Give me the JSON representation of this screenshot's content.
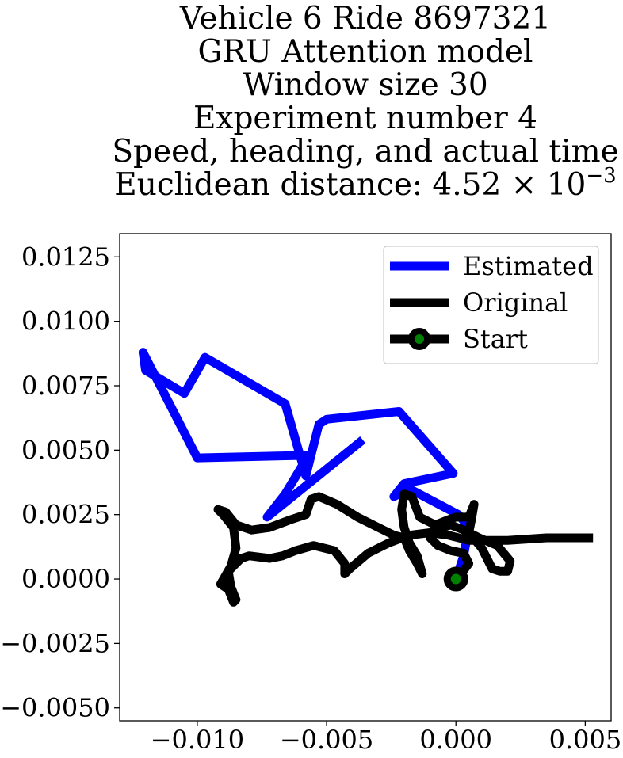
{
  "chart_data": {
    "type": "line",
    "title_lines": [
      "Vehicle 6 Ride 8697321",
      "GRU Attention model",
      "Window size 30",
      "Experiment number 4",
      "Speed, heading, and actual time"
    ],
    "title_distance_prefix": "Euclidean distance: 4.52 × 10",
    "title_distance_exponent": "−3",
    "xlim": [
      -0.013,
      0.006
    ],
    "ylim": [
      -0.0055,
      0.0134
    ],
    "x_ticks": [
      -0.01,
      -0.005,
      0.0,
      0.005
    ],
    "x_tick_labels": [
      "−0.010",
      "−0.005",
      "0.000",
      "0.005"
    ],
    "y_ticks": [
      0.0125,
      0.01,
      0.0075,
      0.005,
      0.0025,
      0.0,
      -0.0025,
      -0.005
    ],
    "y_tick_labels": [
      "0.0125",
      "0.0100",
      "0.0075",
      "0.0050",
      "0.0025",
      "0.0000",
      "−0.0025",
      "−0.0050"
    ],
    "grid": false,
    "legend_position": "top-right",
    "series": [
      {
        "name": "Estimated",
        "color": "#0000ff",
        "points": [
          [
            0.0,
            0.0
          ],
          [
            0.0003,
            0.0009
          ],
          [
            0.0005,
            0.002
          ],
          [
            0.0001,
            0.0025
          ],
          [
            -0.0018,
            0.0035
          ],
          [
            -0.0024,
            0.0032
          ],
          [
            -0.002,
            0.0037
          ],
          [
            -0.0001,
            0.0041
          ],
          [
            -0.0022,
            0.0065
          ],
          [
            -0.005,
            0.0062
          ],
          [
            -0.0053,
            0.006
          ],
          [
            -0.0058,
            0.004
          ],
          [
            -0.006,
            0.0047
          ],
          [
            -0.0066,
            0.0068
          ],
          [
            -0.0097,
            0.0086
          ],
          [
            -0.0105,
            0.0072
          ],
          [
            -0.012,
            0.0081
          ],
          [
            -0.0121,
            0.0088
          ],
          [
            -0.01,
            0.0047
          ],
          [
            -0.0057,
            0.0048
          ],
          [
            -0.0066,
            0.0033
          ],
          [
            -0.0073,
            0.0024
          ],
          [
            -0.0036,
            0.0054
          ]
        ]
      },
      {
        "name": "Original",
        "color": "#000000",
        "points": [
          [
            0.0053,
            0.0016
          ],
          [
            0.0048,
            0.0016
          ],
          [
            0.0035,
            0.0016
          ],
          [
            0.002,
            0.0015
          ],
          [
            0.0005,
            0.0015
          ],
          [
            -0.0003,
            0.0017
          ],
          [
            -0.001,
            0.0018
          ],
          [
            -0.0018,
            0.0017
          ],
          [
            -0.0026,
            0.0014
          ],
          [
            -0.0034,
            0.001
          ],
          [
            -0.0041,
            0.0004
          ],
          [
            -0.0043,
            0.0002
          ],
          [
            -0.0043,
            0.0006
          ],
          [
            -0.0047,
            0.0011
          ],
          [
            -0.0055,
            0.0013
          ],
          [
            -0.0062,
            0.0011
          ],
          [
            -0.0067,
            0.0009
          ],
          [
            -0.0072,
            0.0008
          ],
          [
            -0.008,
            0.0009
          ],
          [
            -0.0083,
            0.0008
          ],
          [
            -0.0085,
            0.0006
          ],
          [
            -0.0088,
            0.0003
          ],
          [
            -0.0087,
            -0.0003
          ],
          [
            -0.0085,
            -0.0008
          ],
          [
            -0.0086,
            -0.0009
          ],
          [
            -0.0088,
            -0.0004
          ],
          [
            -0.0091,
            -0.0002
          ],
          [
            -0.0087,
            0.0005
          ],
          [
            -0.0085,
            0.0012
          ],
          [
            -0.0086,
            0.002
          ],
          [
            -0.009,
            0.0025
          ],
          [
            -0.0092,
            0.0027
          ],
          [
            -0.0089,
            0.0026
          ],
          [
            -0.0085,
            0.0021
          ],
          [
            -0.0079,
            0.0019
          ],
          [
            -0.0072,
            0.002
          ],
          [
            -0.0064,
            0.0023
          ],
          [
            -0.0058,
            0.0025
          ],
          [
            -0.0056,
            0.0031
          ],
          [
            -0.0053,
            0.0032
          ],
          [
            -0.0046,
            0.0029
          ],
          [
            -0.0038,
            0.0024
          ],
          [
            -0.003,
            0.002
          ],
          [
            -0.0024,
            0.0017
          ],
          [
            -0.002,
            0.0016
          ],
          [
            -0.0018,
            0.0011
          ],
          [
            -0.0015,
            0.0006
          ],
          [
            -0.0013,
            0.0002
          ],
          [
            -0.0015,
            0.0009
          ],
          [
            -0.0018,
            0.0014
          ],
          [
            -0.002,
            0.002
          ],
          [
            -0.0021,
            0.0027
          ],
          [
            -0.002,
            0.0033
          ],
          [
            -0.0017,
            0.0032
          ],
          [
            -0.0014,
            0.0024
          ],
          [
            -0.0008,
            0.0021
          ],
          [
            -0.0003,
            0.0023
          ],
          [
            0.0,
            0.0024
          ],
          [
            0.0005,
            0.0024
          ],
          [
            0.0007,
            0.0029
          ],
          [
            0.0006,
            0.0023
          ],
          [
            0.0005,
            0.0018
          ],
          [
            0.001,
            0.0012
          ],
          [
            0.0012,
            0.0008
          ],
          [
            0.0014,
            0.0004
          ],
          [
            0.0017,
            0.0003
          ],
          [
            0.002,
            0.0003
          ],
          [
            0.0021,
            0.0007
          ],
          [
            0.0016,
            0.0013
          ],
          [
            0.0009,
            0.0016
          ],
          [
            0.0003,
            0.0019
          ],
          [
            -0.0002,
            0.0021
          ],
          [
            -0.0008,
            0.0019
          ],
          [
            -0.001,
            0.0016
          ],
          [
            -0.0007,
            0.0013
          ],
          [
            -0.0002,
            0.0011
          ],
          [
            0.0003,
            0.001
          ],
          [
            0.0005,
            0.0006
          ],
          [
            0.0002,
            0.0002
          ],
          [
            0.0,
            0.0
          ]
        ]
      }
    ],
    "start_marker": {
      "name": "Start",
      "x": 0.0,
      "y": 0.0,
      "fill": "#008000",
      "edge": "#000000"
    },
    "legend_entries": [
      "Estimated",
      "Original",
      "Start"
    ]
  }
}
